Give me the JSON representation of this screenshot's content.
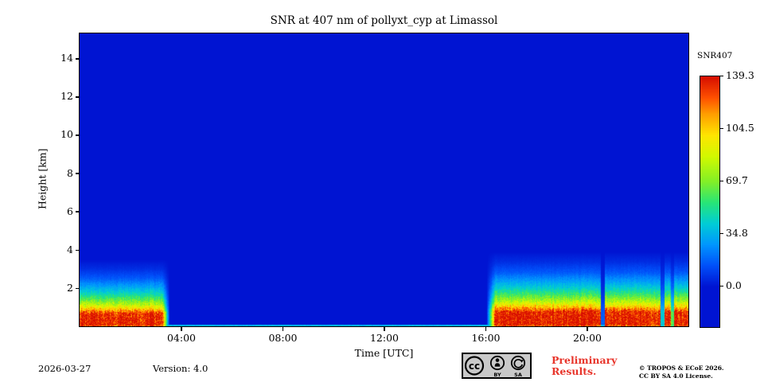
{
  "colors": {
    "preliminary_red": "#e8352b",
    "background_blue": "#0014d2",
    "axis_black": "#000000"
  },
  "footer": {
    "date": "2026-03-27",
    "version": "Version: 4.0",
    "preliminary": "Preliminary Results.",
    "copyright_line1": "© TROPOS & ECoE 2026.",
    "copyright_line2": "CC BY SA 4.0 License.",
    "cc_badge_text": {
      "cc": "cc",
      "by": "BY",
      "sa": "SA"
    }
  },
  "chart_data": {
    "type": "heatmap",
    "title": "SNR at 407 nm of pollyxt_cyp at Limassol",
    "xlabel": "Time [UTC]",
    "ylabel": "Height [km]",
    "x_range_hours": [
      0,
      24
    ],
    "x_ticks": [
      {
        "hour": 4,
        "label": "04:00"
      },
      {
        "hour": 8,
        "label": "08:00"
      },
      {
        "hour": 12,
        "label": "12:00"
      },
      {
        "hour": 16,
        "label": "16:00"
      },
      {
        "hour": 20,
        "label": "20:00"
      }
    ],
    "y_range_km": [
      0,
      15.3
    ],
    "y_ticks_km": [
      2,
      4,
      6,
      8,
      10,
      12,
      14
    ],
    "colorbar": {
      "label": "SNR407",
      "vmin": 0.0,
      "vmax": 139.3,
      "tick_labels": [
        "139.3",
        "104.5",
        "69.7",
        "34.8",
        "0.0"
      ]
    },
    "colormap_stops": [
      [
        0.0,
        [
          0,
          20,
          210
        ]
      ],
      [
        0.1,
        [
          0,
          80,
          250
        ]
      ],
      [
        0.2,
        [
          0,
          150,
          255
        ]
      ],
      [
        0.3,
        [
          0,
          205,
          215
        ]
      ],
      [
        0.4,
        [
          40,
          230,
          120
        ]
      ],
      [
        0.5,
        [
          130,
          240,
          40
        ]
      ],
      [
        0.62,
        [
          210,
          250,
          0
        ]
      ],
      [
        0.72,
        [
          255,
          230,
          0
        ]
      ],
      [
        0.82,
        [
          255,
          160,
          0
        ]
      ],
      [
        0.9,
        [
          255,
          80,
          0
        ]
      ],
      [
        1.0,
        [
          215,
          15,
          0
        ]
      ]
    ],
    "background_snr": 0.0,
    "surface_artifact": {
      "height_km": 0.09,
      "snr": 36
    },
    "segments": [
      {
        "name": "early-morning-boundary-layer",
        "t_start": 0.0,
        "t_end": 3.55,
        "ramp_in": 0.0,
        "ramp_out": 0.3,
        "height_scale": 1.0,
        "profile_heights_km": [
          0.0,
          0.12,
          0.65,
          0.9,
          1.15,
          1.45,
          1.75,
          2.1,
          2.5,
          3.0,
          3.5,
          15.3
        ],
        "profile_snr": [
          125,
          139,
          136,
          105,
          80,
          60,
          44,
          30,
          16,
          6,
          0,
          0
        ],
        "gaps": []
      },
      {
        "name": "evening-boundary-layer",
        "t_start": 16.05,
        "t_end": 24.0,
        "ramp_in": 0.35,
        "ramp_out": 0.0,
        "height_scale": 1.12,
        "profile_heights_km": [
          0.0,
          0.12,
          0.65,
          0.9,
          1.15,
          1.45,
          1.75,
          2.1,
          2.5,
          3.0,
          3.5,
          15.3
        ],
        "profile_snr": [
          125,
          139,
          136,
          105,
          80,
          60,
          44,
          30,
          16,
          6,
          0,
          0
        ],
        "gaps": [
          {
            "t_start": 20.55,
            "t_end": 20.72,
            "scale": 0.12
          },
          {
            "t_start": 22.9,
            "t_end": 23.05,
            "scale": 0.3
          },
          {
            "t_start": 23.3,
            "t_end": 23.42,
            "scale": 0.45
          }
        ]
      }
    ]
  }
}
